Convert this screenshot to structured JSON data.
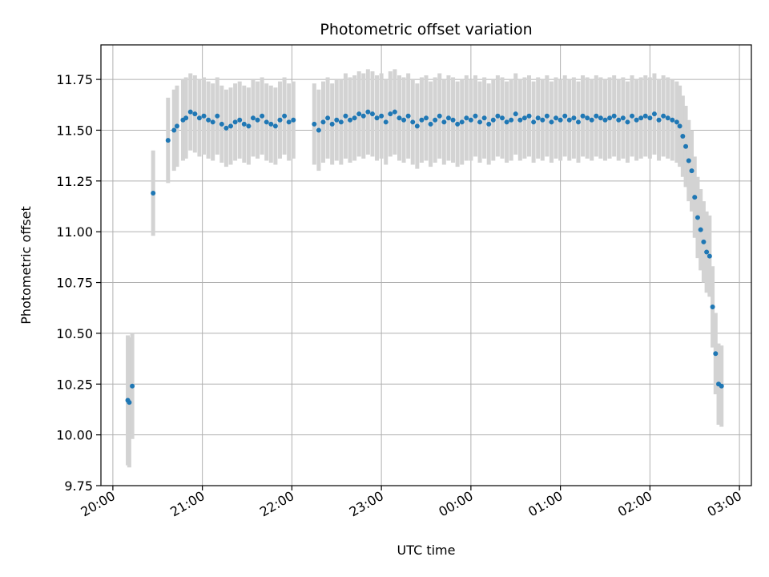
{
  "chart_data": {
    "type": "scatter",
    "title": "Photometric offset variation",
    "xlabel": "UTC time",
    "ylabel": "Photometric offset",
    "x_axis_kind": "time",
    "xlim": [
      "19:52",
      "03:08"
    ],
    "ylim": [
      9.75,
      11.92
    ],
    "grid": true,
    "legend": "none",
    "x_ticks": [
      "20:00",
      "21:00",
      "22:00",
      "23:00",
      "00:00",
      "01:00",
      "02:00",
      "03:00"
    ],
    "y_ticks": [
      9.75,
      10.0,
      10.25,
      10.5,
      10.75,
      11.0,
      11.25,
      11.5,
      11.75
    ],
    "colors": {
      "point": "#1f77b4",
      "errorbar": "#d3d3d3",
      "grid": "#b0b0b0",
      "axes": "#000000"
    },
    "series": [
      {
        "x": [
          "20:10",
          "20:11",
          "20:13",
          "20:27",
          "20:37",
          "20:41",
          "20:43",
          "20:47",
          "20:49",
          "20:52",
          "20:55",
          "20:58",
          "21:01",
          "21:04",
          "21:07",
          "21:10",
          "21:13",
          "21:16",
          "21:19",
          "21:22",
          "21:25",
          "21:28",
          "21:31",
          "21:34",
          "21:37",
          "21:40",
          "21:43",
          "21:46",
          "21:49",
          "21:52",
          "21:55",
          "21:58",
          "22:01",
          "22:15",
          "22:18",
          "22:21",
          "22:24",
          "22:27",
          "22:30",
          "22:33",
          "22:36",
          "22:39",
          "22:42",
          "22:45",
          "22:48",
          "22:51",
          "22:54",
          "22:57",
          "23:00",
          "23:03",
          "23:06",
          "23:09",
          "23:12",
          "23:15",
          "23:18",
          "23:21",
          "23:24",
          "23:27",
          "23:30",
          "23:33",
          "23:36",
          "23:39",
          "23:42",
          "23:45",
          "23:48",
          "23:51",
          "23:54",
          "23:57",
          "00:00",
          "00:03",
          "00:06",
          "00:09",
          "00:12",
          "00:15",
          "00:18",
          "00:21",
          "00:24",
          "00:27",
          "00:30",
          "00:33",
          "00:36",
          "00:39",
          "00:42",
          "00:45",
          "00:48",
          "00:51",
          "00:54",
          "00:57",
          "01:00",
          "01:03",
          "01:06",
          "01:09",
          "01:12",
          "01:15",
          "01:18",
          "01:21",
          "01:24",
          "01:27",
          "01:30",
          "01:33",
          "01:36",
          "01:39",
          "01:42",
          "01:45",
          "01:48",
          "01:51",
          "01:54",
          "01:57",
          "02:00",
          "02:03",
          "02:06",
          "02:09",
          "02:12",
          "02:15",
          "02:18",
          "02:20",
          "02:22",
          "02:24",
          "02:26",
          "02:28",
          "02:30",
          "02:32",
          "02:34",
          "02:36",
          "02:38",
          "02:40",
          "02:42",
          "02:44",
          "02:46",
          "02:48"
        ],
        "y": [
          10.17,
          10.16,
          10.24,
          11.19,
          11.45,
          11.5,
          11.52,
          11.55,
          11.56,
          11.59,
          11.58,
          11.56,
          11.57,
          11.55,
          11.54,
          11.57,
          11.53,
          11.51,
          11.52,
          11.54,
          11.55,
          11.53,
          11.52,
          11.56,
          11.55,
          11.57,
          11.54,
          11.53,
          11.52,
          11.55,
          11.57,
          11.54,
          11.55,
          11.53,
          11.5,
          11.54,
          11.56,
          11.53,
          11.55,
          11.54,
          11.57,
          11.55,
          11.56,
          11.58,
          11.57,
          11.59,
          11.58,
          11.56,
          11.57,
          11.54,
          11.58,
          11.59,
          11.56,
          11.55,
          11.57,
          11.54,
          11.52,
          11.55,
          11.56,
          11.53,
          11.55,
          11.57,
          11.54,
          11.56,
          11.55,
          11.53,
          11.54,
          11.56,
          11.55,
          11.57,
          11.54,
          11.56,
          11.53,
          11.55,
          11.57,
          11.56,
          11.54,
          11.55,
          11.58,
          11.55,
          11.56,
          11.57,
          11.54,
          11.56,
          11.55,
          11.57,
          11.54,
          11.56,
          11.55,
          11.57,
          11.55,
          11.56,
          11.54,
          11.57,
          11.56,
          11.55,
          11.57,
          11.56,
          11.55,
          11.56,
          11.57,
          11.55,
          11.56,
          11.54,
          11.57,
          11.55,
          11.56,
          11.57,
          11.56,
          11.58,
          11.55,
          11.57,
          11.56,
          11.55,
          11.54,
          11.52,
          11.47,
          11.42,
          11.35,
          11.3,
          11.17,
          11.07,
          11.01,
          10.95,
          10.9,
          10.88,
          10.63,
          10.4,
          10.25,
          10.24
        ],
        "yerr": [
          0.32,
          0.32,
          0.26,
          0.21,
          0.21,
          0.2,
          0.2,
          0.2,
          0.2,
          0.19,
          0.19,
          0.19,
          0.19,
          0.19,
          0.19,
          0.19,
          0.19,
          0.19,
          0.19,
          0.19,
          0.19,
          0.19,
          0.19,
          0.19,
          0.19,
          0.19,
          0.19,
          0.19,
          0.19,
          0.19,
          0.19,
          0.19,
          0.19,
          0.2,
          0.2,
          0.2,
          0.2,
          0.2,
          0.2,
          0.21,
          0.21,
          0.21,
          0.21,
          0.21,
          0.21,
          0.21,
          0.21,
          0.21,
          0.21,
          0.21,
          0.21,
          0.21,
          0.21,
          0.21,
          0.21,
          0.21,
          0.21,
          0.21,
          0.21,
          0.21,
          0.21,
          0.21,
          0.21,
          0.21,
          0.21,
          0.21,
          0.21,
          0.21,
          0.2,
          0.2,
          0.2,
          0.2,
          0.2,
          0.2,
          0.2,
          0.2,
          0.2,
          0.2,
          0.2,
          0.2,
          0.2,
          0.2,
          0.2,
          0.2,
          0.2,
          0.2,
          0.2,
          0.2,
          0.2,
          0.2,
          0.2,
          0.2,
          0.2,
          0.2,
          0.2,
          0.2,
          0.2,
          0.2,
          0.2,
          0.2,
          0.2,
          0.2,
          0.2,
          0.2,
          0.2,
          0.2,
          0.2,
          0.2,
          0.2,
          0.2,
          0.2,
          0.2,
          0.2,
          0.2,
          0.2,
          0.2,
          0.2,
          0.2,
          0.2,
          0.2,
          0.2,
          0.2,
          0.2,
          0.2,
          0.2,
          0.2,
          0.2,
          0.2,
          0.2,
          0.2
        ]
      }
    ]
  }
}
